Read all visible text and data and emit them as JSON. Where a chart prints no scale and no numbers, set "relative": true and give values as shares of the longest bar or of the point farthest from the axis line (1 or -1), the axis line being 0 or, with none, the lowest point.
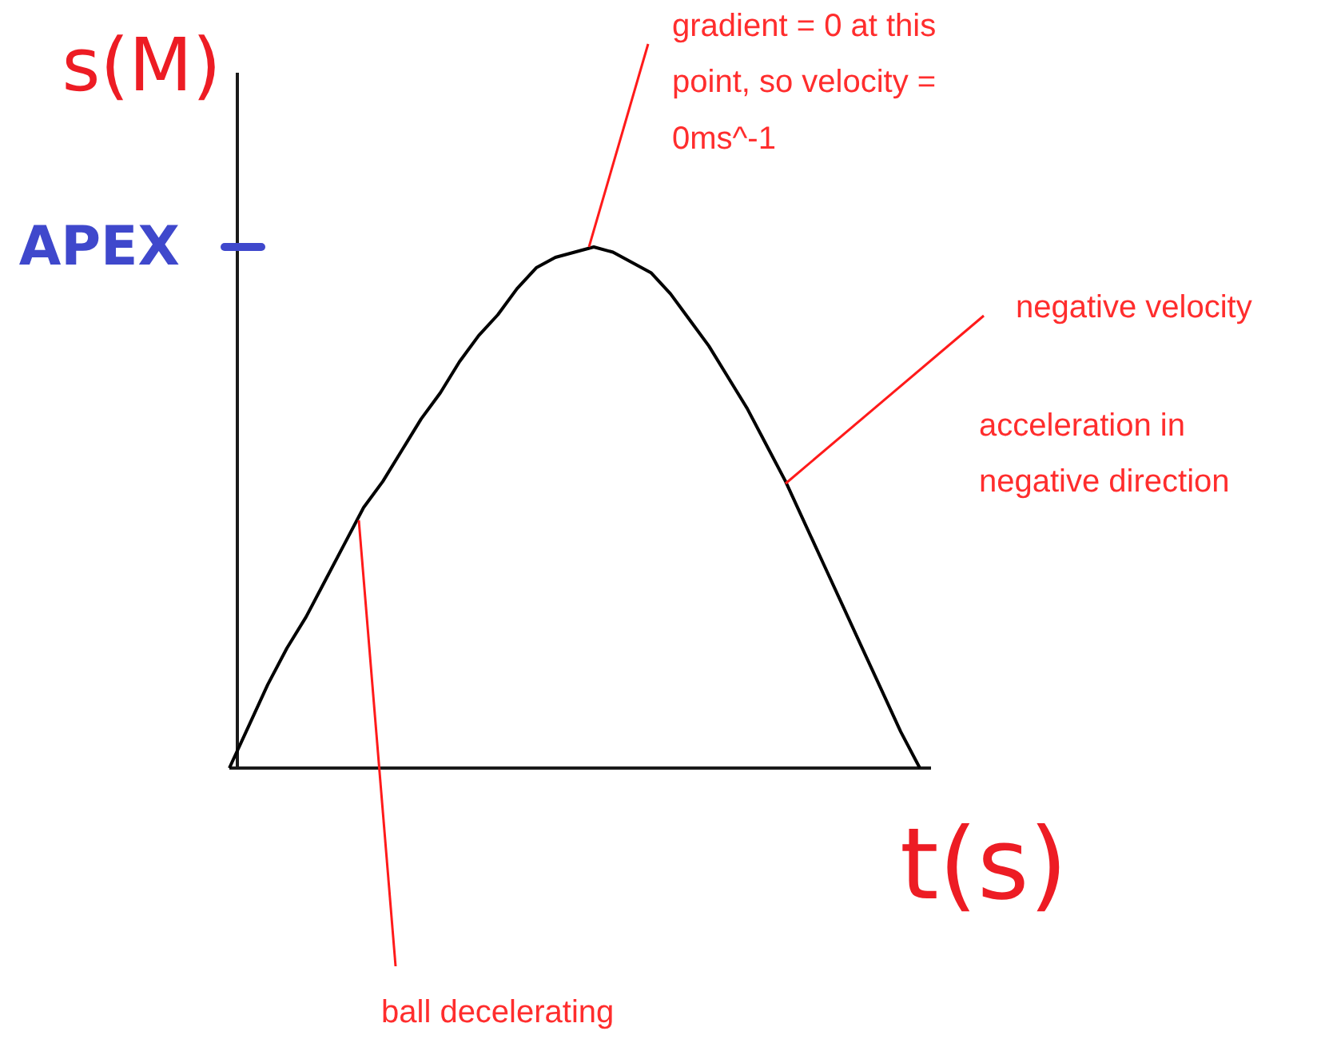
{
  "chart_data": {
    "type": "line",
    "xlabel": "t(s)",
    "ylabel": "s(M)",
    "relative": true,
    "color": "#000000",
    "categories": [
      null,
      null,
      null,
      null,
      null,
      null,
      null,
      null,
      null,
      null,
      null,
      null,
      null,
      null,
      null,
      null,
      null,
      null,
      null,
      null,
      null,
      null,
      null,
      null,
      null,
      null,
      null,
      null,
      null,
      null,
      null,
      null,
      null,
      null,
      null,
      null,
      null
    ],
    "values": [
      0,
      0.08,
      0.16,
      0.23,
      0.29,
      0.36,
      0.43,
      0.5,
      0.55,
      0.61,
      0.67,
      0.72,
      0.78,
      0.83,
      0.87,
      0.92,
      0.96,
      0.98,
      0.99,
      1,
      0.99,
      0.97,
      0.95,
      0.91,
      0.86,
      0.81,
      0.75,
      0.69,
      0.62,
      0.55,
      0.47,
      0.39,
      0.31,
      0.23,
      0.15,
      0.07,
      0
    ],
    "annotations": [
      "APEX",
      "gradient = 0 at this point, so velocity = 0ms^-1",
      "negative velocity",
      "acceleration in negative direction",
      "ball decelerating"
    ]
  }
}
